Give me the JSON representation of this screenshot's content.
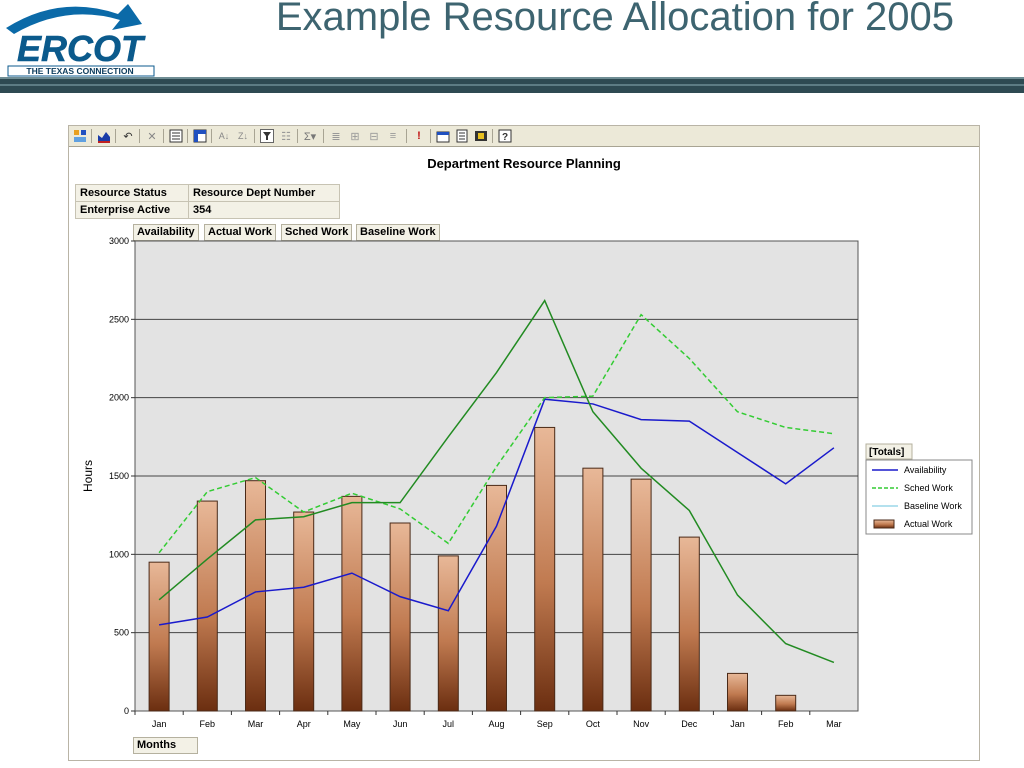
{
  "slide": {
    "title": "Example Resource Allocation for 2005",
    "logo_text": "ERCOT",
    "logo_tagline": "THE TEXAS CONNECTION"
  },
  "toolbar": {
    "icons": [
      "layout-icon",
      "chart-icon",
      "undo-icon",
      "delete-icon",
      "properties-icon",
      "pivot-icon",
      "sort-ascending-icon",
      "sort-descending-icon",
      "filter-icon",
      "filter-clear-icon",
      "autosum-icon",
      "subtotal-icon",
      "expand-icon",
      "collapse-icon",
      "hide-details-icon",
      "alert-icon",
      "export-icon",
      "field-list-icon",
      "commands-icon",
      "help-icon"
    ]
  },
  "report": {
    "title": "Department Resource Planning",
    "filters": [
      {
        "label": "Resource Status",
        "value": "Enterprise Active"
      },
      {
        "label": "Resource Dept Number",
        "value": "354"
      }
    ],
    "data_fields": [
      "Availability",
      "Actual Work",
      "Sched Work",
      "Baseline Work"
    ],
    "row_field": "Months",
    "legend_title": "[Totals]"
  },
  "colors": {
    "availability": "#1a1acc",
    "sched_work": "#33cc33",
    "baseline_work": "#228b22",
    "baseline_legend": "#9bd7e8",
    "bar_top": "#e8b898",
    "bar_bottom": "#6b2e10",
    "plot_bg": "#e3e3e3"
  },
  "chart_data": {
    "type": "bar",
    "title": "Department Resource Planning",
    "xlabel": "",
    "ylabel": "Hours",
    "ylim": [
      0,
      3000
    ],
    "yticks": [
      0,
      500,
      1000,
      1500,
      2000,
      2500,
      3000
    ],
    "grid": true,
    "legend_position": "right",
    "categories": [
      "Jan",
      "Feb",
      "Mar",
      "Apr",
      "May",
      "Jun",
      "Jul",
      "Aug",
      "Sep",
      "Oct",
      "Nov",
      "Dec",
      "Jan",
      "Feb",
      "Mar"
    ],
    "series": [
      {
        "name": "Availability",
        "type": "line",
        "style": "solid",
        "values": [
          550,
          600,
          760,
          790,
          880,
          730,
          640,
          1180,
          1990,
          1960,
          1860,
          1850,
          1650,
          1450,
          1680
        ]
      },
      {
        "name": "Sched Work",
        "type": "line",
        "style": "dashed",
        "values": [
          1010,
          1400,
          1490,
          1270,
          1390,
          1290,
          1070,
          1560,
          2000,
          2010,
          2530,
          2250,
          1910,
          1810,
          1770
        ]
      },
      {
        "name": "Baseline Work",
        "type": "line",
        "style": "solid",
        "values": [
          710,
          970,
          1220,
          1240,
          1330,
          1330,
          1750,
          2160,
          2620,
          1910,
          1550,
          1280,
          740,
          430,
          310
        ]
      },
      {
        "name": "Actual Work",
        "type": "bar",
        "values": [
          950,
          1340,
          1470,
          1270,
          1370,
          1200,
          990,
          1440,
          1810,
          1550,
          1480,
          1110,
          240,
          100,
          0
        ]
      }
    ]
  }
}
